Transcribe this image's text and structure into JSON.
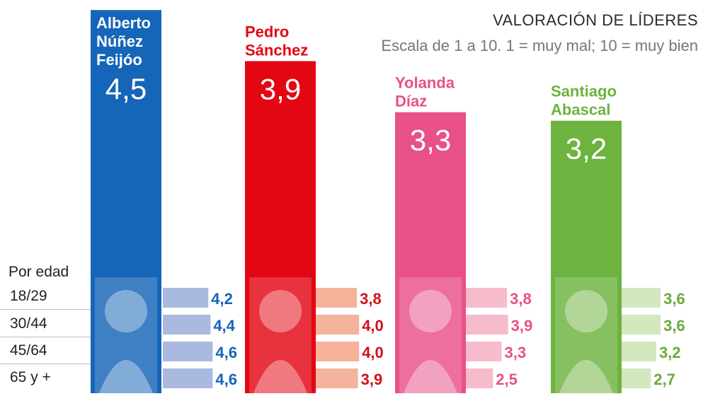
{
  "header": {
    "title": "VALORACIÓN DE LÍDERES",
    "subtitle": "Escala de 1 a 10. 1 = muy mal; 10 = muy bien"
  },
  "age_header": "Por edad",
  "chart_data": {
    "type": "bar",
    "title": "VALORACIÓN DE LÍDERES",
    "subtitle": "Escala de 1 a 10. 1 = muy mal; 10 = muy bien",
    "categories": [
      "Alberto Núñez Feijóo",
      "Pedro Sánchez",
      "Yolanda Díaz",
      "Santiago Abascal"
    ],
    "values": [
      4.5,
      3.9,
      3.3,
      3.2
    ],
    "value_labels": [
      "4,5",
      "3,9",
      "3,3",
      "3,2"
    ],
    "name_lines": [
      [
        "Alberto",
        "Núñez",
        "Feijóo"
      ],
      [
        "Pedro",
        "Sánchez"
      ],
      [
        "Yolanda",
        "Díaz"
      ],
      [
        "Santiago",
        "Abascal"
      ]
    ],
    "colors": [
      "#1565b8",
      "#e30613",
      "#e8508a",
      "#6db33f"
    ],
    "sub_colors": [
      "#aab9e0",
      "#f5b39c",
      "#f7bccb",
      "#d3e8bf"
    ],
    "sub_text_colors": [
      "#1565b8",
      "#d0101a",
      "#e8508a",
      "#6aaa3a"
    ],
    "age_groups": [
      "18/29",
      "30/44",
      "45/64",
      "65 y +"
    ],
    "by_age": [
      {
        "values": [
          4.2,
          4.4,
          4.6,
          4.6
        ],
        "labels": [
          "4,2",
          "4,4",
          "4,6",
          "4,6"
        ]
      },
      {
        "values": [
          3.8,
          4.0,
          4.0,
          3.9
        ],
        "labels": [
          "3,8",
          "4,0",
          "4,0",
          "3,9"
        ]
      },
      {
        "values": [
          3.8,
          3.9,
          3.3,
          2.5
        ],
        "labels": [
          "3,8",
          "3,9",
          "3,3",
          "2,5"
        ]
      },
      {
        "values": [
          3.6,
          3.6,
          3.2,
          2.7
        ],
        "labels": [
          "3,6",
          "3,6",
          "3,2",
          "2,7"
        ]
      }
    ],
    "ylim": [
      0,
      5
    ],
    "grid": false
  }
}
